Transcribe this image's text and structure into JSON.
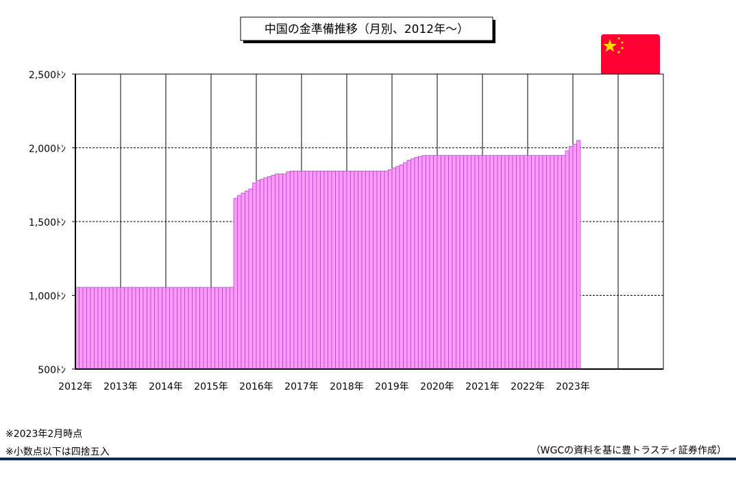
{
  "chart_data": {
    "type": "bar",
    "title": "中国の金準備推移（月別、2012年～）",
    "categories": [
      "2012年",
      null,
      null,
      null,
      null,
      null,
      null,
      null,
      null,
      null,
      null,
      null,
      "2013年",
      null,
      null,
      null,
      null,
      null,
      null,
      null,
      null,
      null,
      null,
      null,
      "2014年",
      null,
      null,
      null,
      null,
      null,
      null,
      null,
      null,
      null,
      null,
      null,
      "2015年",
      null,
      null,
      null,
      null,
      null,
      null,
      null,
      null,
      null,
      null,
      null,
      "2016年",
      null,
      null,
      null,
      null,
      null,
      null,
      null,
      null,
      null,
      null,
      null,
      "2017年",
      null,
      null,
      null,
      null,
      null,
      null,
      null,
      null,
      null,
      null,
      null,
      "2018年",
      null,
      null,
      null,
      null,
      null,
      null,
      null,
      null,
      null,
      null,
      null,
      "2019年",
      null,
      null,
      null,
      null,
      null,
      null,
      null,
      null,
      null,
      null,
      null,
      "2020年",
      null,
      null,
      null,
      null,
      null,
      null,
      null,
      null,
      null,
      null,
      null,
      "2021年",
      null,
      null,
      null,
      null,
      null,
      null,
      null,
      null,
      null,
      null,
      null,
      "2022年",
      null,
      null,
      null,
      null,
      null,
      null,
      null,
      null,
      null,
      null,
      null,
      "2023年",
      null
    ],
    "values": [
      1054,
      1054,
      1054,
      1054,
      1054,
      1054,
      1054,
      1054,
      1054,
      1054,
      1054,
      1054,
      1054,
      1054,
      1054,
      1054,
      1054,
      1054,
      1054,
      1054,
      1054,
      1054,
      1054,
      1054,
      1054,
      1054,
      1054,
      1054,
      1054,
      1054,
      1054,
      1054,
      1054,
      1054,
      1054,
      1054,
      1054,
      1054,
      1054,
      1054,
      1054,
      1054,
      1658,
      1677,
      1693,
      1708,
      1722,
      1762,
      1779,
      1788,
      1798,
      1805,
      1814,
      1823,
      1823,
      1823,
      1838,
      1843,
      1843,
      1843,
      1843,
      1843,
      1843,
      1843,
      1843,
      1843,
      1843,
      1843,
      1843,
      1843,
      1843,
      1843,
      1843,
      1843,
      1843,
      1843,
      1843,
      1843,
      1843,
      1843,
      1843,
      1843,
      1843,
      1852,
      1864,
      1874,
      1885,
      1900,
      1916,
      1926,
      1936,
      1942,
      1948,
      1948,
      1948,
      1948,
      1948,
      1948,
      1948,
      1948,
      1948,
      1948,
      1948,
      1948,
      1948,
      1948,
      1948,
      1948,
      1948,
      1948,
      1948,
      1948,
      1948,
      1948,
      1948,
      1948,
      1948,
      1948,
      1948,
      1948,
      1948,
      1948,
      1948,
      1948,
      1948,
      1948,
      1948,
      1948,
      1948,
      1948,
      1980,
      2010,
      2025,
      2050
    ],
    "color": "#ff99ff",
    "ylim": [
      500,
      2500
    ],
    "yticks": [
      {
        "value": 500,
        "label": "500ﾄﾝ"
      },
      {
        "value": 1000,
        "label": "1,000ﾄﾝ"
      },
      {
        "value": 1500,
        "label": "1,500ﾄﾝ"
      },
      {
        "value": 2000,
        "label": "2,000ﾄﾝ"
      },
      {
        "value": 2500,
        "label": "2,500ﾄﾝ"
      }
    ],
    "grid": true,
    "notes": [
      "※2023年2月時点",
      "※小数点以下は四捨五入"
    ],
    "source": "（WGCの資料を基に豊トラスティ証券作成）"
  }
}
